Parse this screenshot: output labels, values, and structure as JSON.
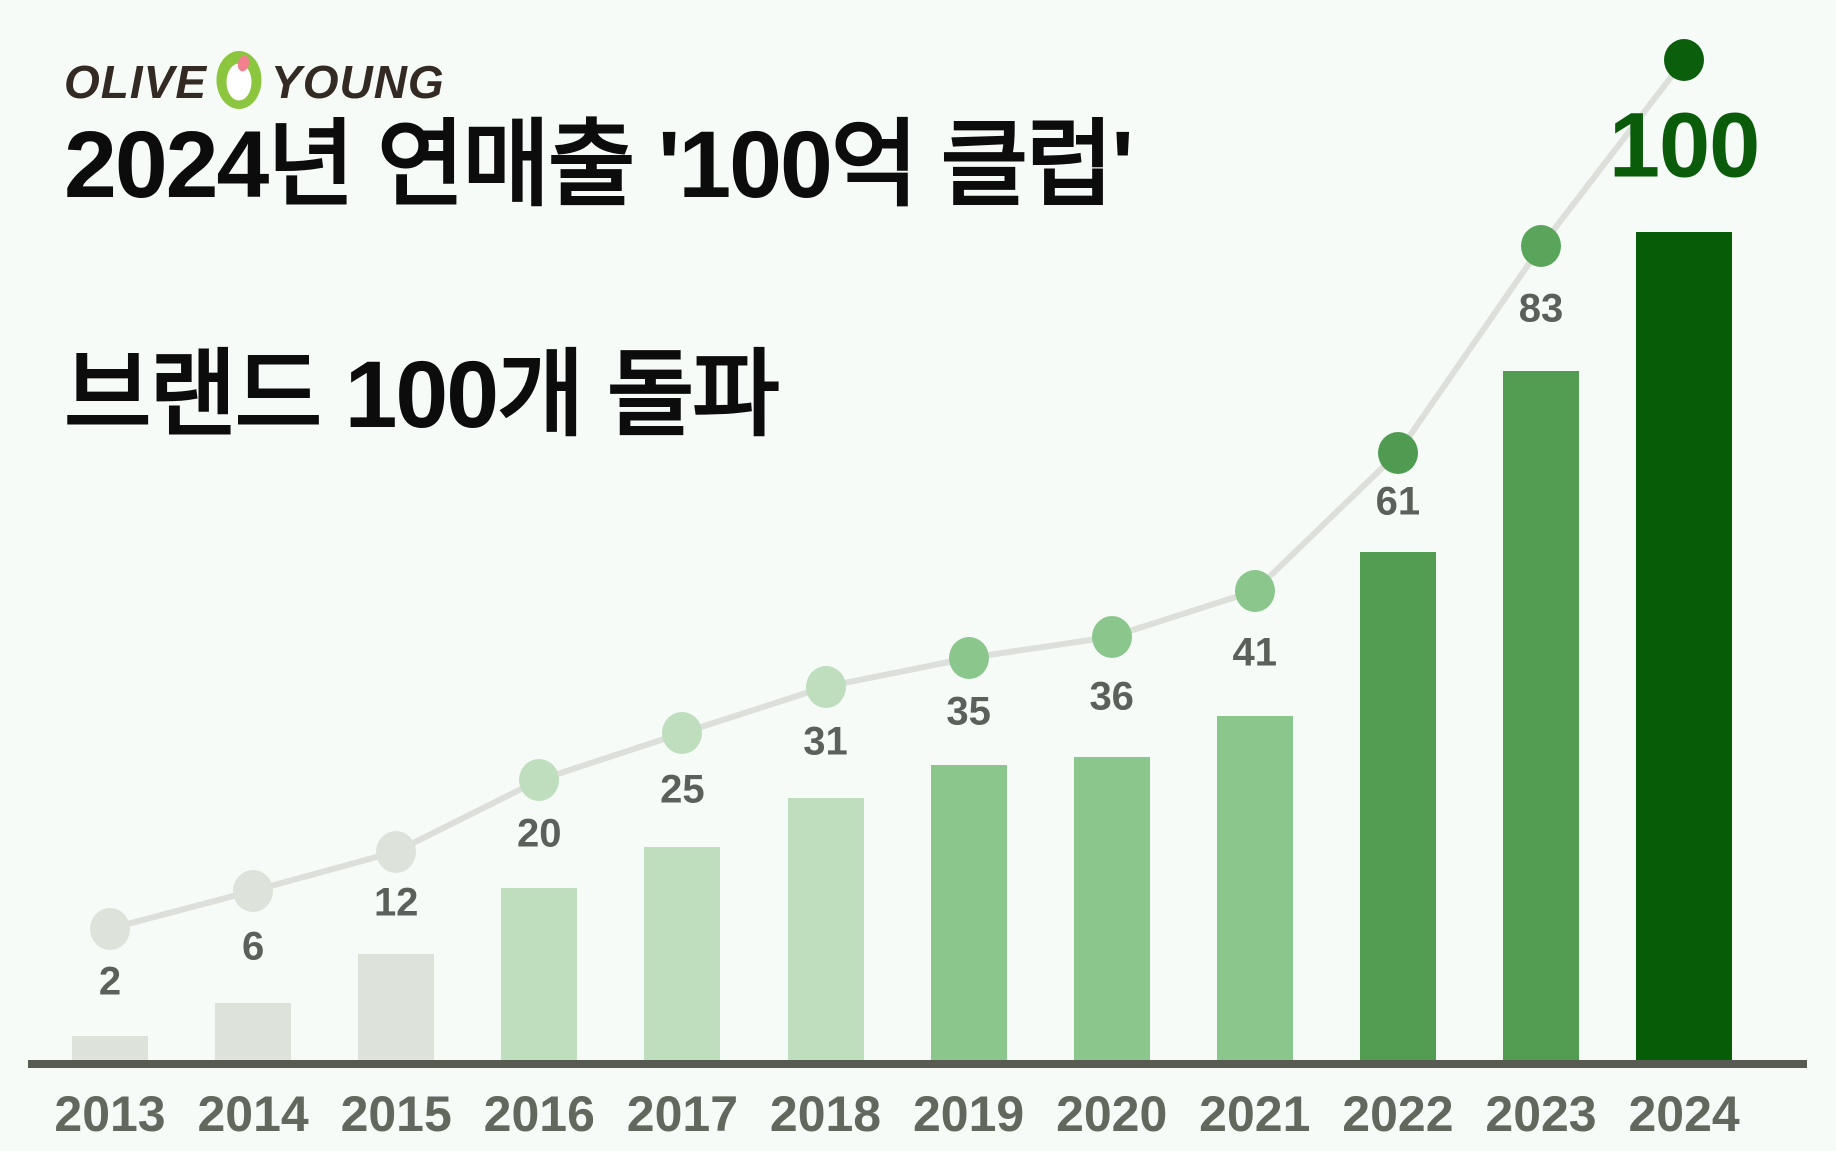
{
  "logo": {
    "word_left": "OLIVE",
    "word_right": "YOUNG",
    "icon": "olive-o-icon",
    "green": "#8cc63e",
    "pink": "#f2808f",
    "text_color": "#332a24"
  },
  "title": {
    "line1": "2024년 연매출 '100억 클럽'",
    "line2": "브랜드 100개 돌파"
  },
  "chart_data": {
    "type": "bar",
    "note": "bar series with overlaid line of same values, highlighted final year",
    "title": "2024년 연매출 '100억 클럽' 브랜드 100개 돌파",
    "categories": [
      "2013",
      "2014",
      "2015",
      "2016",
      "2017",
      "2018",
      "2019",
      "2020",
      "2021",
      "2022",
      "2023",
      "2024"
    ],
    "values": [
      2,
      6,
      12,
      20,
      25,
      31,
      35,
      36,
      41,
      61,
      83,
      100
    ],
    "series": [
      {
        "name": "brand-count-bars",
        "type": "bar",
        "uses": "values"
      },
      {
        "name": "brand-count-trend",
        "type": "line",
        "uses": "values"
      }
    ],
    "ylim": [
      0,
      100
    ],
    "grid": false,
    "legend": "none",
    "highlight_index": 11,
    "highlight_label": "100",
    "bar_colors": [
      "#dde2da",
      "#dde2da",
      "#dde2da",
      "#bedebe",
      "#bedebe",
      "#bedebe",
      "#8bc78d",
      "#8bc78d",
      "#8bc78d",
      "#529d52",
      "#529d52",
      "#075c07"
    ],
    "dot_colors": [
      "#dde2da",
      "#dde2da",
      "#dde2da",
      "#bedebe",
      "#bedebe",
      "#bedebe",
      "#8bc78d",
      "#8bc78d",
      "#8bc78d",
      "#4f9b51",
      "#5aa55c",
      "#0b5e0c"
    ],
    "line_color": "#dcdfda",
    "axis_color": "#575b52",
    "value_label_color": "#5b615a",
    "highlight_label_color": "#0a5c0a",
    "year_label_color": "#63685f",
    "background_color": "#f6fbf7"
  }
}
